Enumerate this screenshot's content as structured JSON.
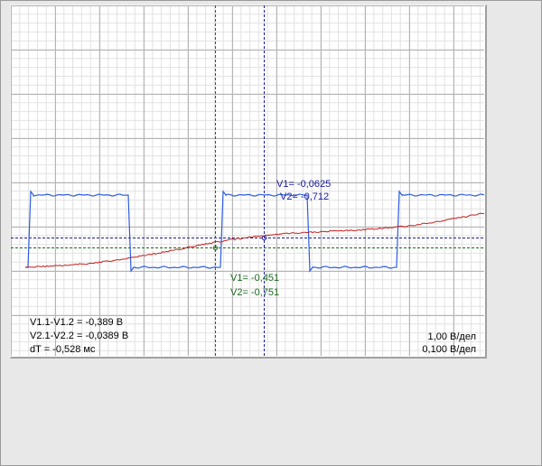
{
  "cursor_v_blue": {
    "v1": "V1= -0,0625",
    "v2": "V2= -0,712"
  },
  "cursor_v_green": {
    "v1": "V1= -0,451",
    "v2": "V2= -0,751"
  },
  "measurements": {
    "dv1": "V1.1-V1.2 = -0,389 В",
    "dv2": "V2.1-V2.2 = -0,0389 В",
    "dt": "dT = -0,528 мс"
  },
  "scales": {
    "ch1": "1,00 В/дел",
    "ch2": "0,100 В/дел"
  },
  "colors": {
    "grid_major": "#b4b4b4",
    "grid_minor": "#e2e2e2",
    "ch1_trace": "#2d5de0",
    "ch2_trace": "#c42020",
    "cursor_blue": "#1a1aa0",
    "cursor_green": "#1d6a1d"
  }
}
